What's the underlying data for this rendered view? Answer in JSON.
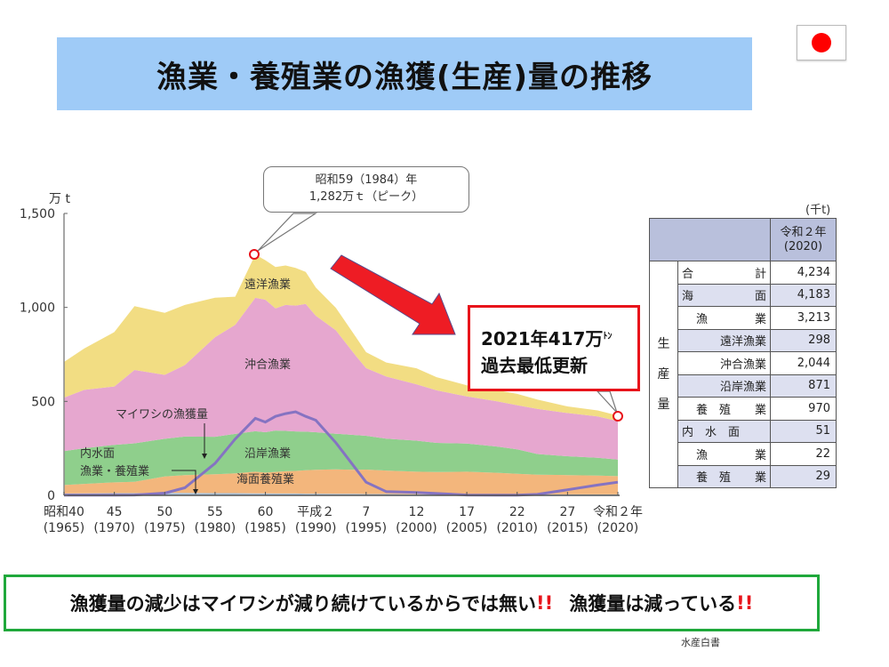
{
  "header": {
    "title": "漁業・養殖業の漁獲(生産)量の推移",
    "flag_icon": "japan-flag-icon"
  },
  "chart_data": {
    "type": "area",
    "stacked": true,
    "title": "漁業・養殖業の漁獲(生産)量の推移",
    "ylabel": "万 t",
    "ylim": [
      0,
      1500
    ],
    "yticks": [
      "0",
      "500",
      "1,000",
      "1,500"
    ],
    "xlabel": "",
    "x_ticks": [
      {
        "era": "昭和40",
        "year": "(1965)"
      },
      {
        "era": "45",
        "year": "(1970)"
      },
      {
        "era": "50",
        "year": "(1975)"
      },
      {
        "era": "55",
        "year": "(1980)"
      },
      {
        "era": "60",
        "year": "(1985)"
      },
      {
        "era": "平成２",
        "year": "(1990)"
      },
      {
        "era": "7",
        "year": "(1995)"
      },
      {
        "era": "12",
        "year": "(2000)"
      },
      {
        "era": "17",
        "year": "(2005)"
      },
      {
        "era": "22",
        "year": "(2010)"
      },
      {
        "era": "27",
        "year": "(2015)"
      },
      {
        "era": "令和２年",
        "year": "(2020)"
      }
    ],
    "x": [
      1965,
      1967,
      1970,
      1972,
      1975,
      1977,
      1980,
      1982,
      1984,
      1985,
      1986,
      1987,
      1988,
      1989,
      1990,
      1992,
      1994,
      1995,
      1997,
      2000,
      2002,
      2005,
      2008,
      2010,
      2012,
      2015,
      2018,
      2020
    ],
    "series": [
      {
        "name": "内水面漁業・養殖業",
        "color": "#a9c3dc",
        "values": [
          10,
          11,
          12,
          12,
          13,
          13,
          12,
          12,
          11,
          11,
          10,
          10,
          10,
          9,
          9,
          8,
          8,
          7,
          7,
          6,
          6,
          6,
          5,
          5,
          5,
          5,
          5,
          5
        ]
      },
      {
        "name": "海面養殖業",
        "color": "#f3b67c",
        "values": [
          45,
          50,
          57,
          60,
          88,
          95,
          100,
          105,
          115,
          110,
          115,
          118,
          120,
          125,
          127,
          130,
          128,
          130,
          125,
          120,
          118,
          120,
          115,
          110,
          105,
          103,
          100,
          97
        ]
      },
      {
        "name": "沿岸漁業",
        "color": "#8fcf8c",
        "values": [
          180,
          190,
          200,
          205,
          200,
          205,
          200,
          210,
          215,
          215,
          220,
          215,
          210,
          205,
          200,
          190,
          185,
          180,
          170,
          165,
          155,
          150,
          140,
          130,
          110,
          100,
          95,
          88
        ]
      },
      {
        "name": "沖合漁業",
        "color": "#e6a7cf",
        "values": [
          285,
          310,
          310,
          390,
          340,
          380,
          530,
          580,
          710,
          705,
          650,
          670,
          670,
          680,
          620,
          550,
          420,
          360,
          330,
          300,
          280,
          250,
          240,
          235,
          240,
          230,
          220,
          205
        ]
      },
      {
        "name": "遠洋漁業",
        "color": "#f2dd83",
        "values": [
          190,
          220,
          290,
          340,
          330,
          320,
          210,
          150,
          230,
          210,
          220,
          210,
          200,
          170,
          150,
          120,
          100,
          85,
          75,
          85,
          70,
          60,
          60,
          60,
          50,
          35,
          32,
          30
        ]
      }
    ],
    "line_series": [
      {
        "name": "マイワシの漁獲量",
        "color": "#8573c2",
        "values": [
          1,
          1,
          1,
          2,
          12,
          40,
          170,
          300,
          410,
          390,
          420,
          435,
          445,
          420,
          400,
          280,
          140,
          70,
          20,
          15,
          10,
          2,
          1,
          1,
          5,
          30,
          55,
          70
        ]
      }
    ],
    "annotations": [
      {
        "text": "昭和59（1984）年\n1,282万ｔ（ピーク）",
        "x": 1984,
        "y": 1282
      },
      {
        "text": "2021年417万トン 過去最低更新",
        "x": 2021,
        "y": 417
      },
      {
        "text": "内水面 漁業・養殖業",
        "target": "内水面漁業・養殖業"
      },
      {
        "text": "マイワシの漁獲量",
        "target": "マイワシの漁獲量"
      }
    ],
    "series_labels": [
      "遠洋漁業",
      "沖合漁業",
      "沿岸漁業",
      "海面養殖業",
      "マイワシの漁獲量",
      "内水面",
      "漁業・養殖業"
    ],
    "legend_position": "inline",
    "grid": false
  },
  "callouts": {
    "peak_line1": "昭和59（1984）年",
    "peak_line2": "1,282万ｔ（ピーク）",
    "low_line1_main": "2021年417万",
    "low_line1_unit": "ﾄﾝ",
    "low_line2": "過去最低更新"
  },
  "axis": {
    "unit": "万 t",
    "y_ticks": [
      "0",
      "500",
      "1,000",
      "1,500"
    ]
  },
  "labels": {
    "distant": "遠洋漁業",
    "offshore": "沖合漁業",
    "coastal": "沿岸漁業",
    "marine_aquaculture": "海面養殖業",
    "sardine": "マイワシの漁獲量",
    "inland_line1": "内水面",
    "inland_line2": "漁業・養殖業"
  },
  "table": {
    "unit": "(千t)",
    "header_year_line1": "令和２年",
    "header_year_line2": "(2020)",
    "vertical_label": [
      "生",
      "産",
      "量"
    ],
    "rows": [
      {
        "label_a": "合",
        "label_b": "計",
        "value": "4,234",
        "indent": 0,
        "shade": false
      },
      {
        "label_a": "海",
        "label_b": "面",
        "value": "4,183",
        "indent": 0,
        "shade": true
      },
      {
        "label_a": "漁",
        "label_b": "業",
        "value": "3,213",
        "indent": 1,
        "shade": false
      },
      {
        "label_a": "",
        "label_b": "遠洋漁業",
        "value": "298",
        "indent": 2,
        "shade": true
      },
      {
        "label_a": "",
        "label_b": "沖合漁業",
        "value": "2,044",
        "indent": 2,
        "shade": false
      },
      {
        "label_a": "",
        "label_b": "沿岸漁業",
        "value": "871",
        "indent": 2,
        "shade": true
      },
      {
        "label_a": "養　殖",
        "label_b": "業",
        "value": "970",
        "indent": 1,
        "shade": false
      },
      {
        "label_a": "内　水　面",
        "label_b": "",
        "value": "51",
        "indent": 0,
        "shade": true
      },
      {
        "label_a": "漁",
        "label_b": "業",
        "value": "22",
        "indent": 1,
        "shade": false
      },
      {
        "label_a": "養　殖",
        "label_b": "業",
        "value": "29",
        "indent": 1,
        "shade": true
      }
    ]
  },
  "bottom_message": {
    "part1": "漁獲量の減少はマイワシが減り続けているからでは無い",
    "excl1": "!!",
    "part2": "漁獲量は減っている",
    "excl2": "!!"
  },
  "source": "水産白書",
  "colors": {
    "title_bg": "#9fcbf7",
    "arrow": "#ee1c24",
    "low_callout_border": "#e8141b",
    "bottom_border": "#1fa83b",
    "table_header": "#b9c0dc",
    "table_shade": "#dde0f0"
  }
}
